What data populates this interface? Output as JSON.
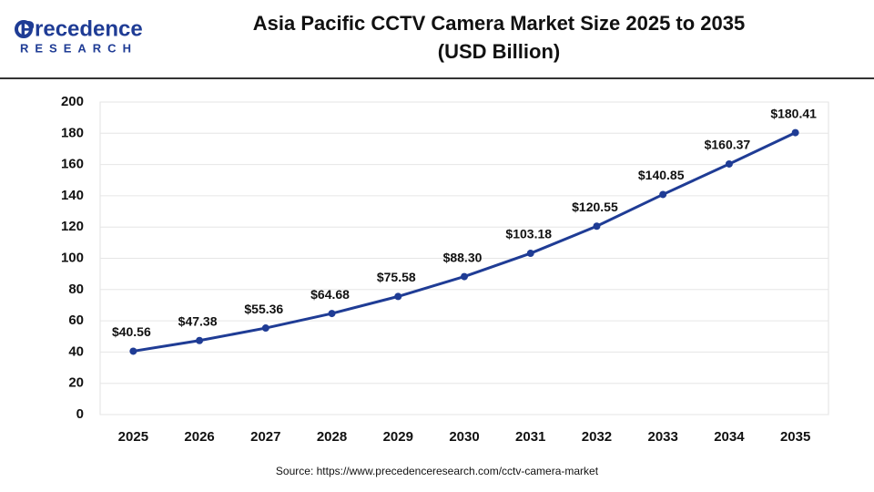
{
  "logo": {
    "name": "Precedence",
    "sub": "RESEARCH"
  },
  "chart_data": {
    "type": "line",
    "title": "Asia Pacific CCTV Camera Market Size 2025 to 2035",
    "subtitle": "(USD Billion)",
    "categories": [
      "2025",
      "2026",
      "2027",
      "2028",
      "2029",
      "2030",
      "2031",
      "2032",
      "2033",
      "2034",
      "2035"
    ],
    "values": [
      40.56,
      47.38,
      55.36,
      64.68,
      75.58,
      88.3,
      103.18,
      120.55,
      140.85,
      160.37,
      180.41
    ],
    "value_labels": [
      "$40.56",
      "$47.38",
      "$55.36",
      "$64.68",
      "$75.58",
      "$88.30",
      "$103.18",
      "$120.55",
      "$140.85",
      "$160.37",
      "$180.41"
    ],
    "color": "#1f3c95",
    "ylim": [
      0,
      200
    ],
    "yticks": [
      0,
      20,
      40,
      60,
      80,
      100,
      120,
      140,
      160,
      180,
      200
    ],
    "grid": true,
    "source": "Source: https://www.precedenceresearch.com/cctv-camera-market"
  }
}
